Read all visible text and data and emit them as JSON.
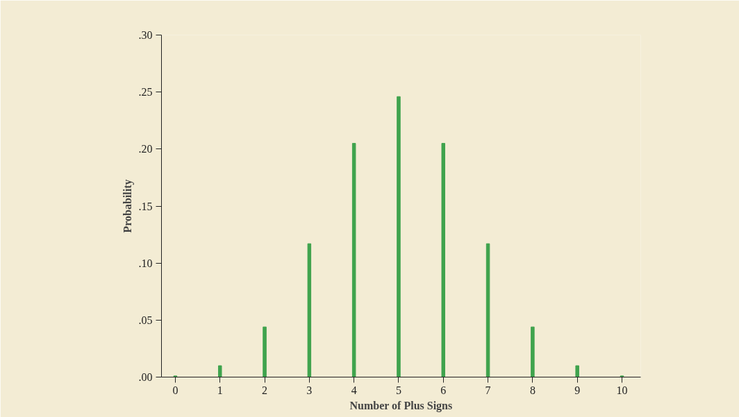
{
  "chart_data": {
    "type": "bar",
    "xlabel": "Number of Plus Signs",
    "ylabel": "Probability",
    "x": [
      0,
      1,
      2,
      3,
      4,
      5,
      6,
      7,
      8,
      9,
      10
    ],
    "series": [
      {
        "color": "#3fa34d",
        "values": [
          0.001,
          0.01,
          0.044,
          0.117,
          0.205,
          0.246,
          0.205,
          0.117,
          0.044,
          0.01,
          0.001
        ]
      }
    ],
    "xlim": [
      -0.31,
      10.42
    ],
    "ylim": [
      0,
      0.3
    ],
    "xticks": [
      0,
      1,
      2,
      3,
      4,
      5,
      6,
      7,
      8,
      9,
      10
    ],
    "yticks": [
      {
        "value": 0,
        "label": ".00"
      },
      {
        "value": 0.05,
        "label": ".05"
      },
      {
        "value": 0.1,
        "label": ".10"
      },
      {
        "value": 0.15,
        "label": ".15"
      },
      {
        "value": 0.2,
        "label": ".20"
      },
      {
        "value": 0.25,
        "label": ".25"
      },
      {
        "value": 0.3,
        "label": ".30"
      }
    ],
    "grid": false
  }
}
